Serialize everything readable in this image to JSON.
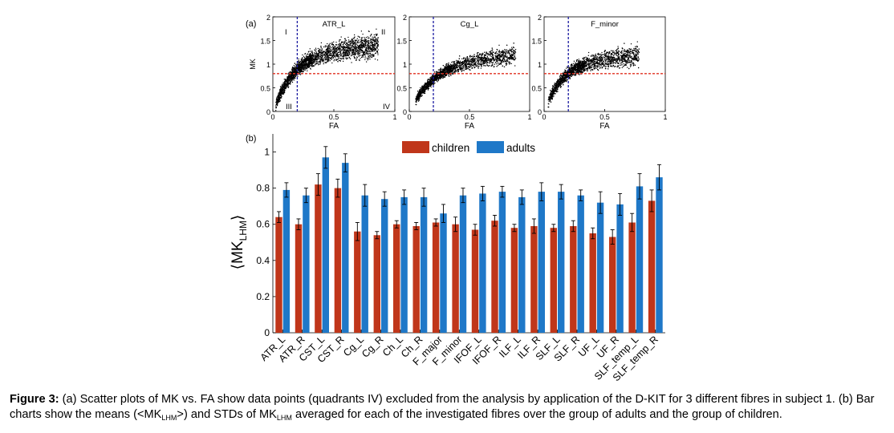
{
  "chart_data": [
    {
      "type": "scatter",
      "panel_label": "(a)",
      "xlabel": "FA",
      "ylabel": "MK",
      "xlim": [
        0,
        1
      ],
      "ylim": [
        0,
        2
      ],
      "x_ticks": [
        "0",
        "0.5",
        "1"
      ],
      "y_ticks": [
        "0",
        "0.5",
        "1",
        "1.5",
        "2"
      ],
      "subplots": [
        {
          "title": "ATR_L",
          "vline_fa": 0.2,
          "hline_mk": 0.8,
          "quadrants": [
            "I",
            "II",
            "III",
            "IV"
          ]
        },
        {
          "title": "Cg_L",
          "vline_fa": 0.2,
          "hline_mk": 0.8,
          "quadrants": []
        },
        {
          "title": "F_minor",
          "vline_fa": 0.2,
          "hline_mk": 0.8,
          "quadrants": []
        }
      ],
      "colors": {
        "points": "#000000",
        "vline": "#1a1aa0",
        "hline": "#e03020"
      }
    },
    {
      "type": "bar",
      "panel_label": "(b)",
      "ylabel": "⟨MK",
      "ylabel_sub": "LHM",
      "ylabel_close": "⟩",
      "ylim": [
        0,
        1.1
      ],
      "y_ticks": [
        "0",
        "0.2",
        "0.4",
        "0.6",
        "0.8",
        "1"
      ],
      "categories": [
        "ATR_L",
        "ATR_R",
        "CST_L",
        "CST_R",
        "Cg_L",
        "Cg_R",
        "Ch_L",
        "Ch_R",
        "F_major",
        "F_minor",
        "IFOF_L",
        "IFOF_R",
        "ILF_L",
        "ILF_R",
        "SLF_L",
        "SLF_R",
        "UF_L",
        "UF_R",
        "SLF_temp_L",
        "SLF_temp_R"
      ],
      "legend_position": "top-center",
      "series": [
        {
          "name": "children",
          "color": "#c0361a",
          "values": [
            0.64,
            0.6,
            0.82,
            0.8,
            0.56,
            0.54,
            0.6,
            0.59,
            0.61,
            0.6,
            0.57,
            0.62,
            0.58,
            0.59,
            0.58,
            0.59,
            0.55,
            0.53,
            0.61,
            0.73
          ],
          "errors": [
            0.03,
            0.03,
            0.06,
            0.05,
            0.05,
            0.02,
            0.02,
            0.02,
            0.02,
            0.04,
            0.03,
            0.03,
            0.02,
            0.04,
            0.02,
            0.03,
            0.03,
            0.04,
            0.05,
            0.06
          ]
        },
        {
          "name": "adults",
          "color": "#1f78c8",
          "values": [
            0.79,
            0.76,
            0.97,
            0.94,
            0.76,
            0.74,
            0.75,
            0.75,
            0.66,
            0.76,
            0.77,
            0.78,
            0.75,
            0.78,
            0.78,
            0.76,
            0.72,
            0.71,
            0.81,
            0.86
          ]
        }
      ],
      "adult_errors": [
        0.04,
        0.04,
        0.06,
        0.05,
        0.06,
        0.04,
        0.04,
        0.05,
        0.05,
        0.04,
        0.04,
        0.03,
        0.04,
        0.05,
        0.04,
        0.03,
        0.06,
        0.06,
        0.07,
        0.07
      ]
    }
  ],
  "caption": {
    "label": "Figure 3:",
    "text_1": " (a) Scatter plots of MK vs. FA show data points (quadrants IV) excluded from the analysis by application of the D-KIT for 3 different fibres in subject 1. (b) Bar charts show the means (<MK",
    "sub_1": "LHM",
    "text_2": ">) and STDs of MK",
    "sub_2": "LHM",
    "text_3": " averaged for each of the investigated fibres over the group of adults and the group of children."
  }
}
